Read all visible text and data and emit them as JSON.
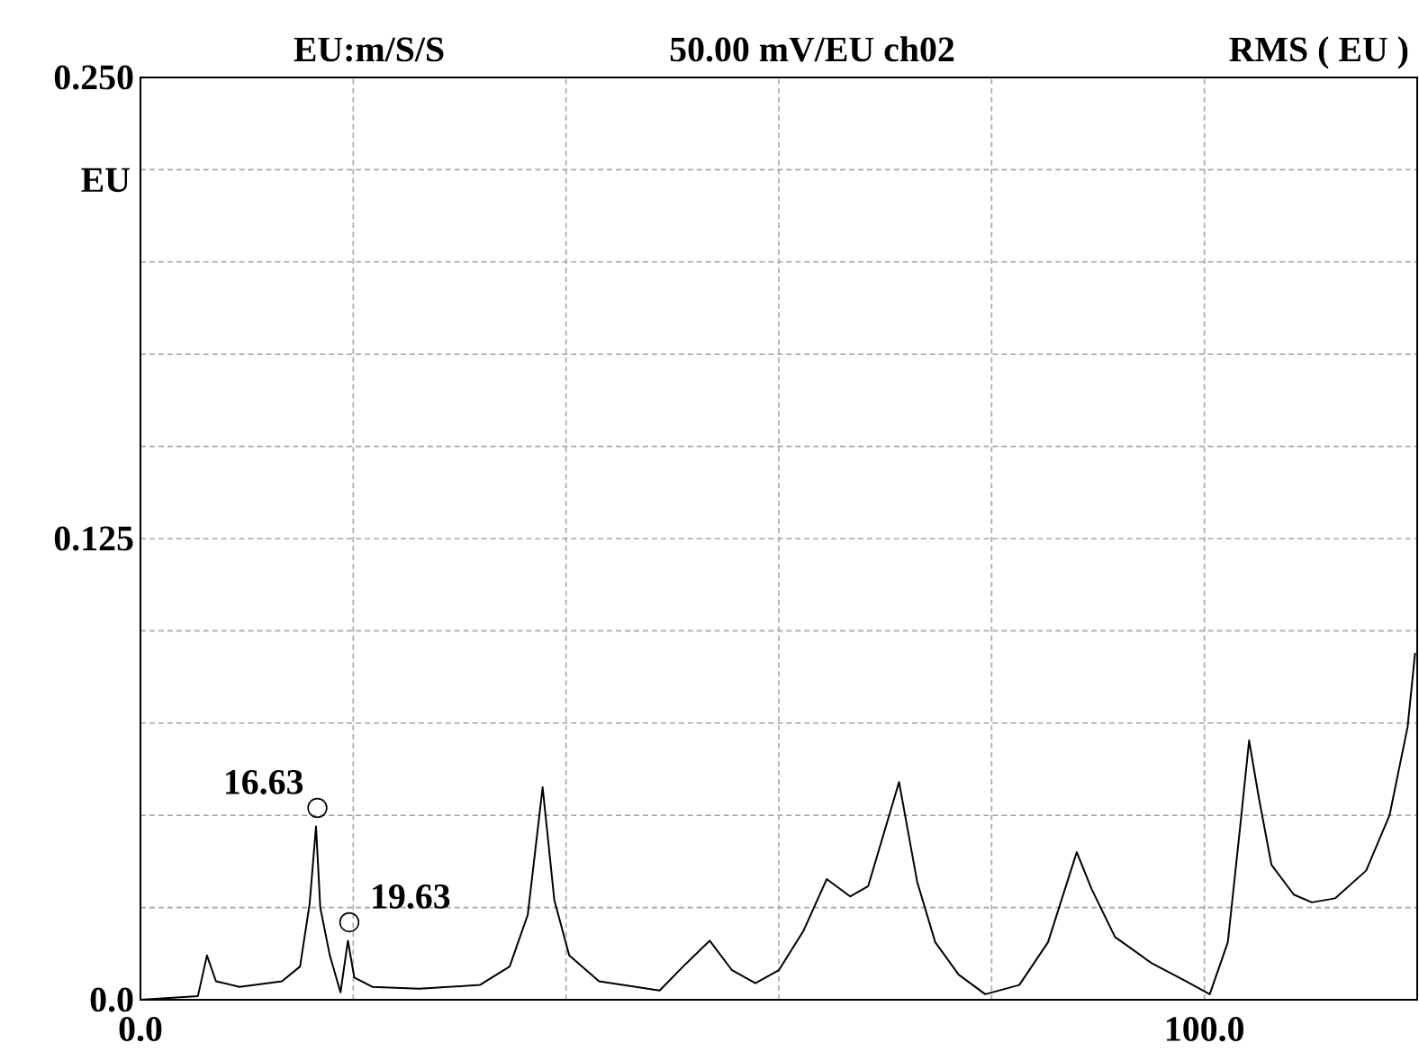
{
  "chart_data": {
    "type": "line",
    "title": "EU:m/S/S",
    "subtitle": "50.00 mV/EU  ch02",
    "ylabel": "EU",
    "annotations": [
      "RMS ( EU )",
      {
        "text": "16.63",
        "x": 16.63,
        "y": 0.052
      },
      {
        "text": "19.63",
        "x": 19.63,
        "y": 0.021
      }
    ],
    "xlim": [
      0,
      120
    ],
    "ylim": [
      0,
      0.25
    ],
    "xticks": [
      {
        "value": 0,
        "label": "0.0"
      },
      {
        "value": 20,
        "label": null
      },
      {
        "value": 40,
        "label": null
      },
      {
        "value": 60,
        "label": null
      },
      {
        "value": 80,
        "label": null
      },
      {
        "value": 100,
        "label": "100.0"
      }
    ],
    "yticks": [
      {
        "value": 0,
        "label": "0.0"
      },
      {
        "value": 0.025,
        "label": null
      },
      {
        "value": 0.05,
        "label": null
      },
      {
        "value": 0.075,
        "label": null
      },
      {
        "value": 0.1,
        "label": null
      },
      {
        "value": 0.125,
        "label": "0.125"
      },
      {
        "value": 0.15,
        "label": null
      },
      {
        "value": 0.175,
        "label": null
      },
      {
        "value": 0.2,
        "label": null
      },
      {
        "value": 0.225,
        "label": null
      },
      {
        "value": 0.25,
        "label": "0.250"
      }
    ],
    "grid": true,
    "line_style": "solid",
    "series": [
      {
        "color": "#000000",
        "marker": "none",
        "x": [
          0,
          5.4,
          6.25,
          7.1,
          9.3,
          13.3,
          15,
          15.9,
          16.5,
          16.9,
          17.8,
          18.8,
          19.5,
          20.1,
          21.8,
          26.2,
          31.9,
          34.7,
          36.4,
          37.8,
          38.9,
          40.3,
          43.1,
          48.8,
          51,
          53.5,
          55.6,
          57.8,
          60,
          62.3,
          64.5,
          66.7,
          68.4,
          71.3,
          73,
          74.7,
          76.9,
          79.4,
          82.6,
          85.3,
          88,
          89.4,
          91.6,
          95,
          98.3,
          100.5,
          102.2,
          103.4,
          104.2,
          105.1,
          106.3,
          108.4,
          110.1,
          112.3,
          115.2,
          117.4,
          119.1,
          119.8
        ],
        "values": [
          0,
          0.001,
          0.012,
          0.005,
          0.0035,
          0.005,
          0.009,
          0.026,
          0.047,
          0.025,
          0.012,
          0.002,
          0.016,
          0.006,
          0.0035,
          0.003,
          0.004,
          0.009,
          0.023,
          0.0576,
          0.027,
          0.012,
          0.005,
          0.0025,
          0.009,
          0.016,
          0.008,
          0.0045,
          0.008,
          0.0186,
          0.0327,
          0.028,
          0.0308,
          0.059,
          0.032,
          0.0156,
          0.0068,
          0.0015,
          0.004,
          0.0156,
          0.04,
          0.03,
          0.017,
          0.01,
          0.005,
          0.0015,
          0.0156,
          0.048,
          0.0703,
          0.055,
          0.0366,
          0.0285,
          0.0264,
          0.0275,
          0.035,
          0.05,
          0.074,
          0.094
        ]
      },
      {
        "type": "scatter",
        "color": "#000000",
        "marker": "circle",
        "x": [
          16.63,
          19.63
        ],
        "values": [
          0.052,
          0.021
        ]
      }
    ]
  }
}
